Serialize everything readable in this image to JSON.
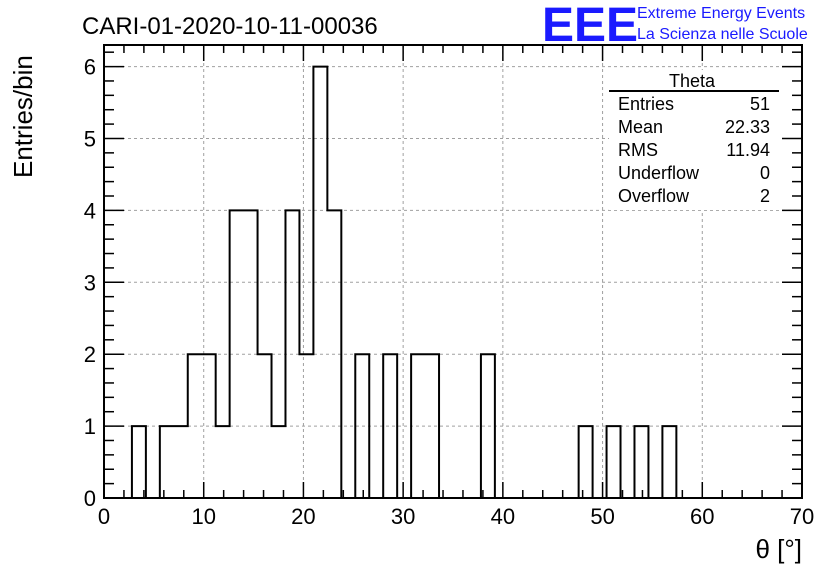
{
  "chart_data": {
    "type": "bar",
    "title": "CARI-01-2020-10-11-00036",
    "xlabel": "θ [°]",
    "ylabel": "Entries/bin",
    "xlim": [
      0,
      70
    ],
    "ylim": [
      0,
      6.3
    ],
    "grid": true,
    "bin_width": 1.4,
    "bins": [
      {
        "x0": 2.8,
        "count": 1
      },
      {
        "x0": 4.2,
        "count": 0
      },
      {
        "x0": 5.6,
        "count": 1
      },
      {
        "x0": 7.0,
        "count": 1
      },
      {
        "x0": 8.4,
        "count": 2
      },
      {
        "x0": 9.8,
        "count": 2
      },
      {
        "x0": 11.2,
        "count": 1
      },
      {
        "x0": 12.6,
        "count": 4
      },
      {
        "x0": 14.0,
        "count": 4
      },
      {
        "x0": 15.4,
        "count": 2
      },
      {
        "x0": 16.8,
        "count": 1
      },
      {
        "x0": 18.2,
        "count": 4
      },
      {
        "x0": 19.6,
        "count": 2
      },
      {
        "x0": 21.0,
        "count": 6
      },
      {
        "x0": 22.4,
        "count": 4
      },
      {
        "x0": 23.8,
        "count": 0
      },
      {
        "x0": 25.2,
        "count": 2
      },
      {
        "x0": 26.6,
        "count": 0
      },
      {
        "x0": 28.0,
        "count": 2
      },
      {
        "x0": 29.4,
        "count": 0
      },
      {
        "x0": 30.8,
        "count": 2
      },
      {
        "x0": 32.2,
        "count": 2
      },
      {
        "x0": 33.6,
        "count": 0
      },
      {
        "x0": 35.0,
        "count": 0
      },
      {
        "x0": 36.4,
        "count": 0
      },
      {
        "x0": 37.8,
        "count": 2
      },
      {
        "x0": 39.2,
        "count": 0
      },
      {
        "x0": 40.6,
        "count": 0
      },
      {
        "x0": 42.0,
        "count": 0
      },
      {
        "x0": 43.4,
        "count": 0
      },
      {
        "x0": 44.8,
        "count": 0
      },
      {
        "x0": 46.2,
        "count": 0
      },
      {
        "x0": 47.6,
        "count": 1
      },
      {
        "x0": 49.0,
        "count": 0
      },
      {
        "x0": 50.4,
        "count": 1
      },
      {
        "x0": 51.8,
        "count": 0
      },
      {
        "x0": 53.2,
        "count": 1
      },
      {
        "x0": 54.6,
        "count": 0
      },
      {
        "x0": 56.0,
        "count": 1
      }
    ],
    "x_ticks": [
      0,
      10,
      20,
      30,
      40,
      50,
      60,
      70
    ],
    "y_ticks": [
      0,
      1,
      2,
      3,
      4,
      5,
      6
    ],
    "stats": {
      "title": "Theta",
      "rows": [
        {
          "label": "Entries",
          "value": "51"
        },
        {
          "label": "Mean",
          "value": "22.33"
        },
        {
          "label": "RMS",
          "value": "11.94"
        },
        {
          "label": "Underflow",
          "value": "0"
        },
        {
          "label": "Overflow",
          "value": "2"
        }
      ]
    },
    "logo": {
      "mark": "EEE",
      "line1": "Extreme Energy Events",
      "line2": "La Scienza nelle Scuole"
    },
    "colors": {
      "line": "#000000",
      "grid": "#a0a0a0",
      "logo": "#1a1aff"
    }
  }
}
